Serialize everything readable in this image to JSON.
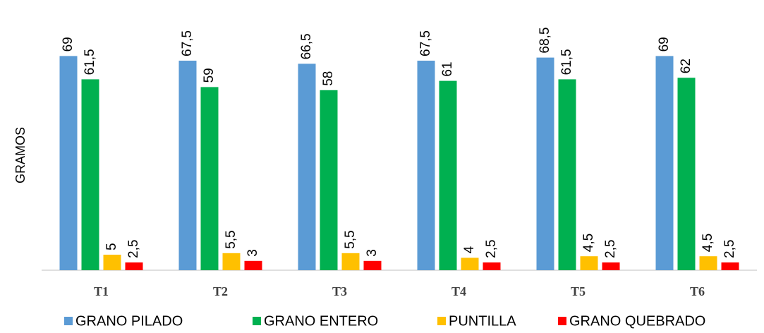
{
  "chart_data": {
    "type": "bar",
    "y_label": "GRAMOS",
    "categories": [
      "T1",
      "T2",
      "T3",
      "T4",
      "T5",
      "T6"
    ],
    "series": [
      {
        "name": "GRANO PILADO",
        "color": "#5b9bd5",
        "values": [
          69,
          67.5,
          66.5,
          67.5,
          68.5,
          69
        ],
        "value_labels": [
          "69",
          "67,5",
          "66,5",
          "67,5",
          "68,5",
          "69"
        ]
      },
      {
        "name": "GRANO ENTERO",
        "color": "#00b050",
        "values": [
          61.5,
          59,
          58,
          61,
          61.5,
          62
        ],
        "value_labels": [
          "61,5",
          "59",
          "58",
          "61",
          "61,5",
          "62"
        ]
      },
      {
        "name": "PUNTILLA",
        "color": "#ffc000",
        "values": [
          5,
          5.5,
          5.5,
          4,
          4.5,
          4.5
        ],
        "value_labels": [
          "5",
          "5,5",
          "5,5",
          "4",
          "4,5",
          "4,5"
        ]
      },
      {
        "name": "GRANO QUEBRADO",
        "color": "#ff0000",
        "values": [
          2.5,
          3,
          3,
          2.5,
          2.5,
          2.5
        ],
        "value_labels": [
          "2,5",
          "3",
          "3",
          "2,5",
          "2,5",
          "2,5"
        ]
      }
    ],
    "ylim": [
      0,
      70
    ],
    "legend": "bottom"
  }
}
